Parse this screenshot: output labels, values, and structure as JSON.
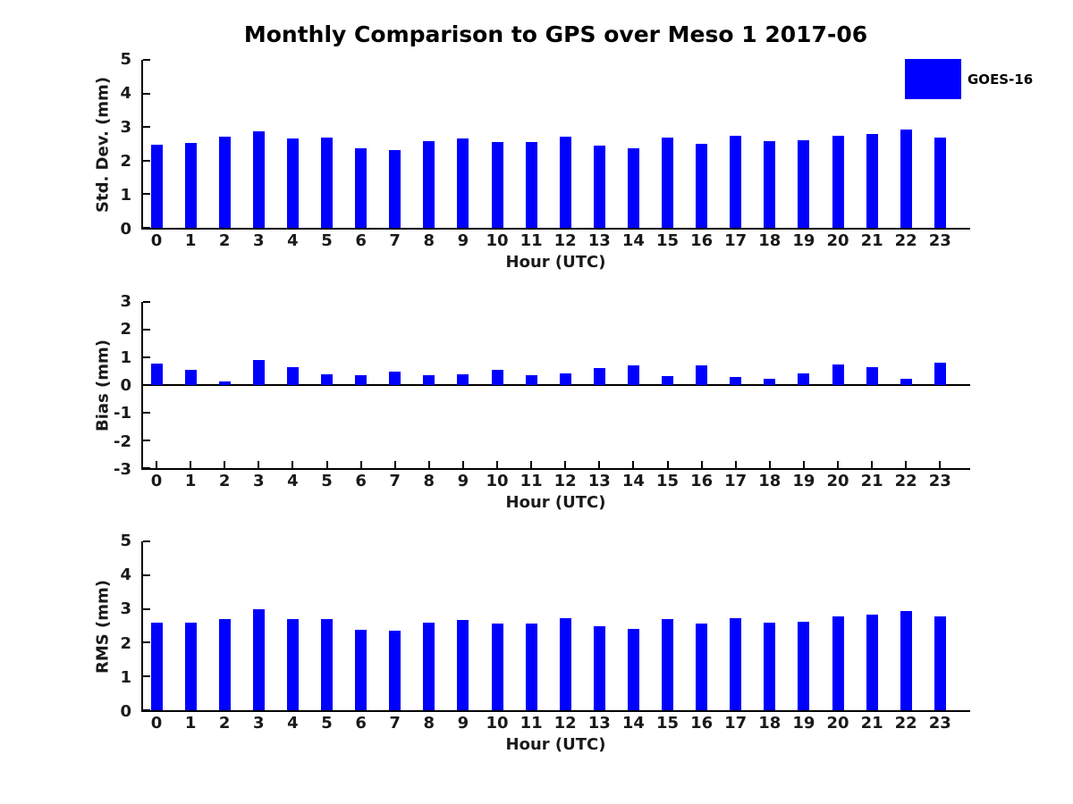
{
  "figure": {
    "title": "Monthly Comparison to GPS over Meso 1 2017-06",
    "background": "#ffffff",
    "text_color": "#1a1a1a"
  },
  "legend": {
    "label": "GOES-16",
    "swatch_color": "#0000ff",
    "position": "top-right"
  },
  "chart_data": [
    {
      "type": "bar",
      "series_name": "GOES-16",
      "ylabel": "Std. Dev. (mm)",
      "xlabel": "Hour (UTC)",
      "ylim": [
        0,
        5
      ],
      "yticks": [
        0,
        1,
        2,
        3,
        4,
        5
      ],
      "grid": false,
      "zero_line": false,
      "xticks_visible": false,
      "bar_color": "#0000ff",
      "categories": [
        "0",
        "1",
        "2",
        "3",
        "4",
        "5",
        "6",
        "7",
        "8",
        "9",
        "10",
        "11",
        "12",
        "13",
        "14",
        "15",
        "16",
        "17",
        "18",
        "19",
        "20",
        "21",
        "22",
        "23"
      ],
      "values": [
        2.48,
        2.53,
        2.72,
        2.86,
        2.66,
        2.69,
        2.37,
        2.32,
        2.59,
        2.65,
        2.55,
        2.56,
        2.72,
        2.45,
        2.36,
        2.69,
        2.49,
        2.73,
        2.59,
        2.62,
        2.74,
        2.8,
        2.93,
        2.68
      ]
    },
    {
      "type": "bar",
      "series_name": "GOES-16",
      "ylabel": "Bias (mm)",
      "xlabel": "Hour (UTC)",
      "ylim": [
        -3,
        3
      ],
      "yticks": [
        -3,
        -2,
        -1,
        0,
        1,
        2,
        3
      ],
      "grid": false,
      "zero_line": true,
      "xticks_visible": true,
      "bar_color": "#0000ff",
      "categories": [
        "0",
        "1",
        "2",
        "3",
        "4",
        "5",
        "6",
        "7",
        "8",
        "9",
        "10",
        "11",
        "12",
        "13",
        "14",
        "15",
        "16",
        "17",
        "18",
        "19",
        "20",
        "21",
        "22",
        "23"
      ],
      "values": [
        0.76,
        0.56,
        0.14,
        0.9,
        0.66,
        0.38,
        0.37,
        0.49,
        0.34,
        0.39,
        0.54,
        0.37,
        0.43,
        0.62,
        0.72,
        0.31,
        0.72,
        0.3,
        0.23,
        0.42,
        0.75,
        0.63,
        0.24,
        0.81
      ]
    },
    {
      "type": "bar",
      "series_name": "GOES-16",
      "ylabel": "RMS (mm)",
      "xlabel": "Hour (UTC)",
      "ylim": [
        0,
        5
      ],
      "yticks": [
        0,
        1,
        2,
        3,
        4,
        5
      ],
      "grid": false,
      "zero_line": false,
      "xticks_visible": false,
      "bar_color": "#0000ff",
      "categories": [
        "0",
        "1",
        "2",
        "3",
        "4",
        "5",
        "6",
        "7",
        "8",
        "9",
        "10",
        "11",
        "12",
        "13",
        "14",
        "15",
        "16",
        "17",
        "18",
        "19",
        "20",
        "21",
        "22",
        "23"
      ],
      "values": [
        2.58,
        2.58,
        2.7,
        2.98,
        2.71,
        2.69,
        2.37,
        2.36,
        2.58,
        2.66,
        2.56,
        2.57,
        2.72,
        2.49,
        2.42,
        2.7,
        2.57,
        2.72,
        2.58,
        2.63,
        2.79,
        2.84,
        2.94,
        2.79
      ]
    }
  ]
}
